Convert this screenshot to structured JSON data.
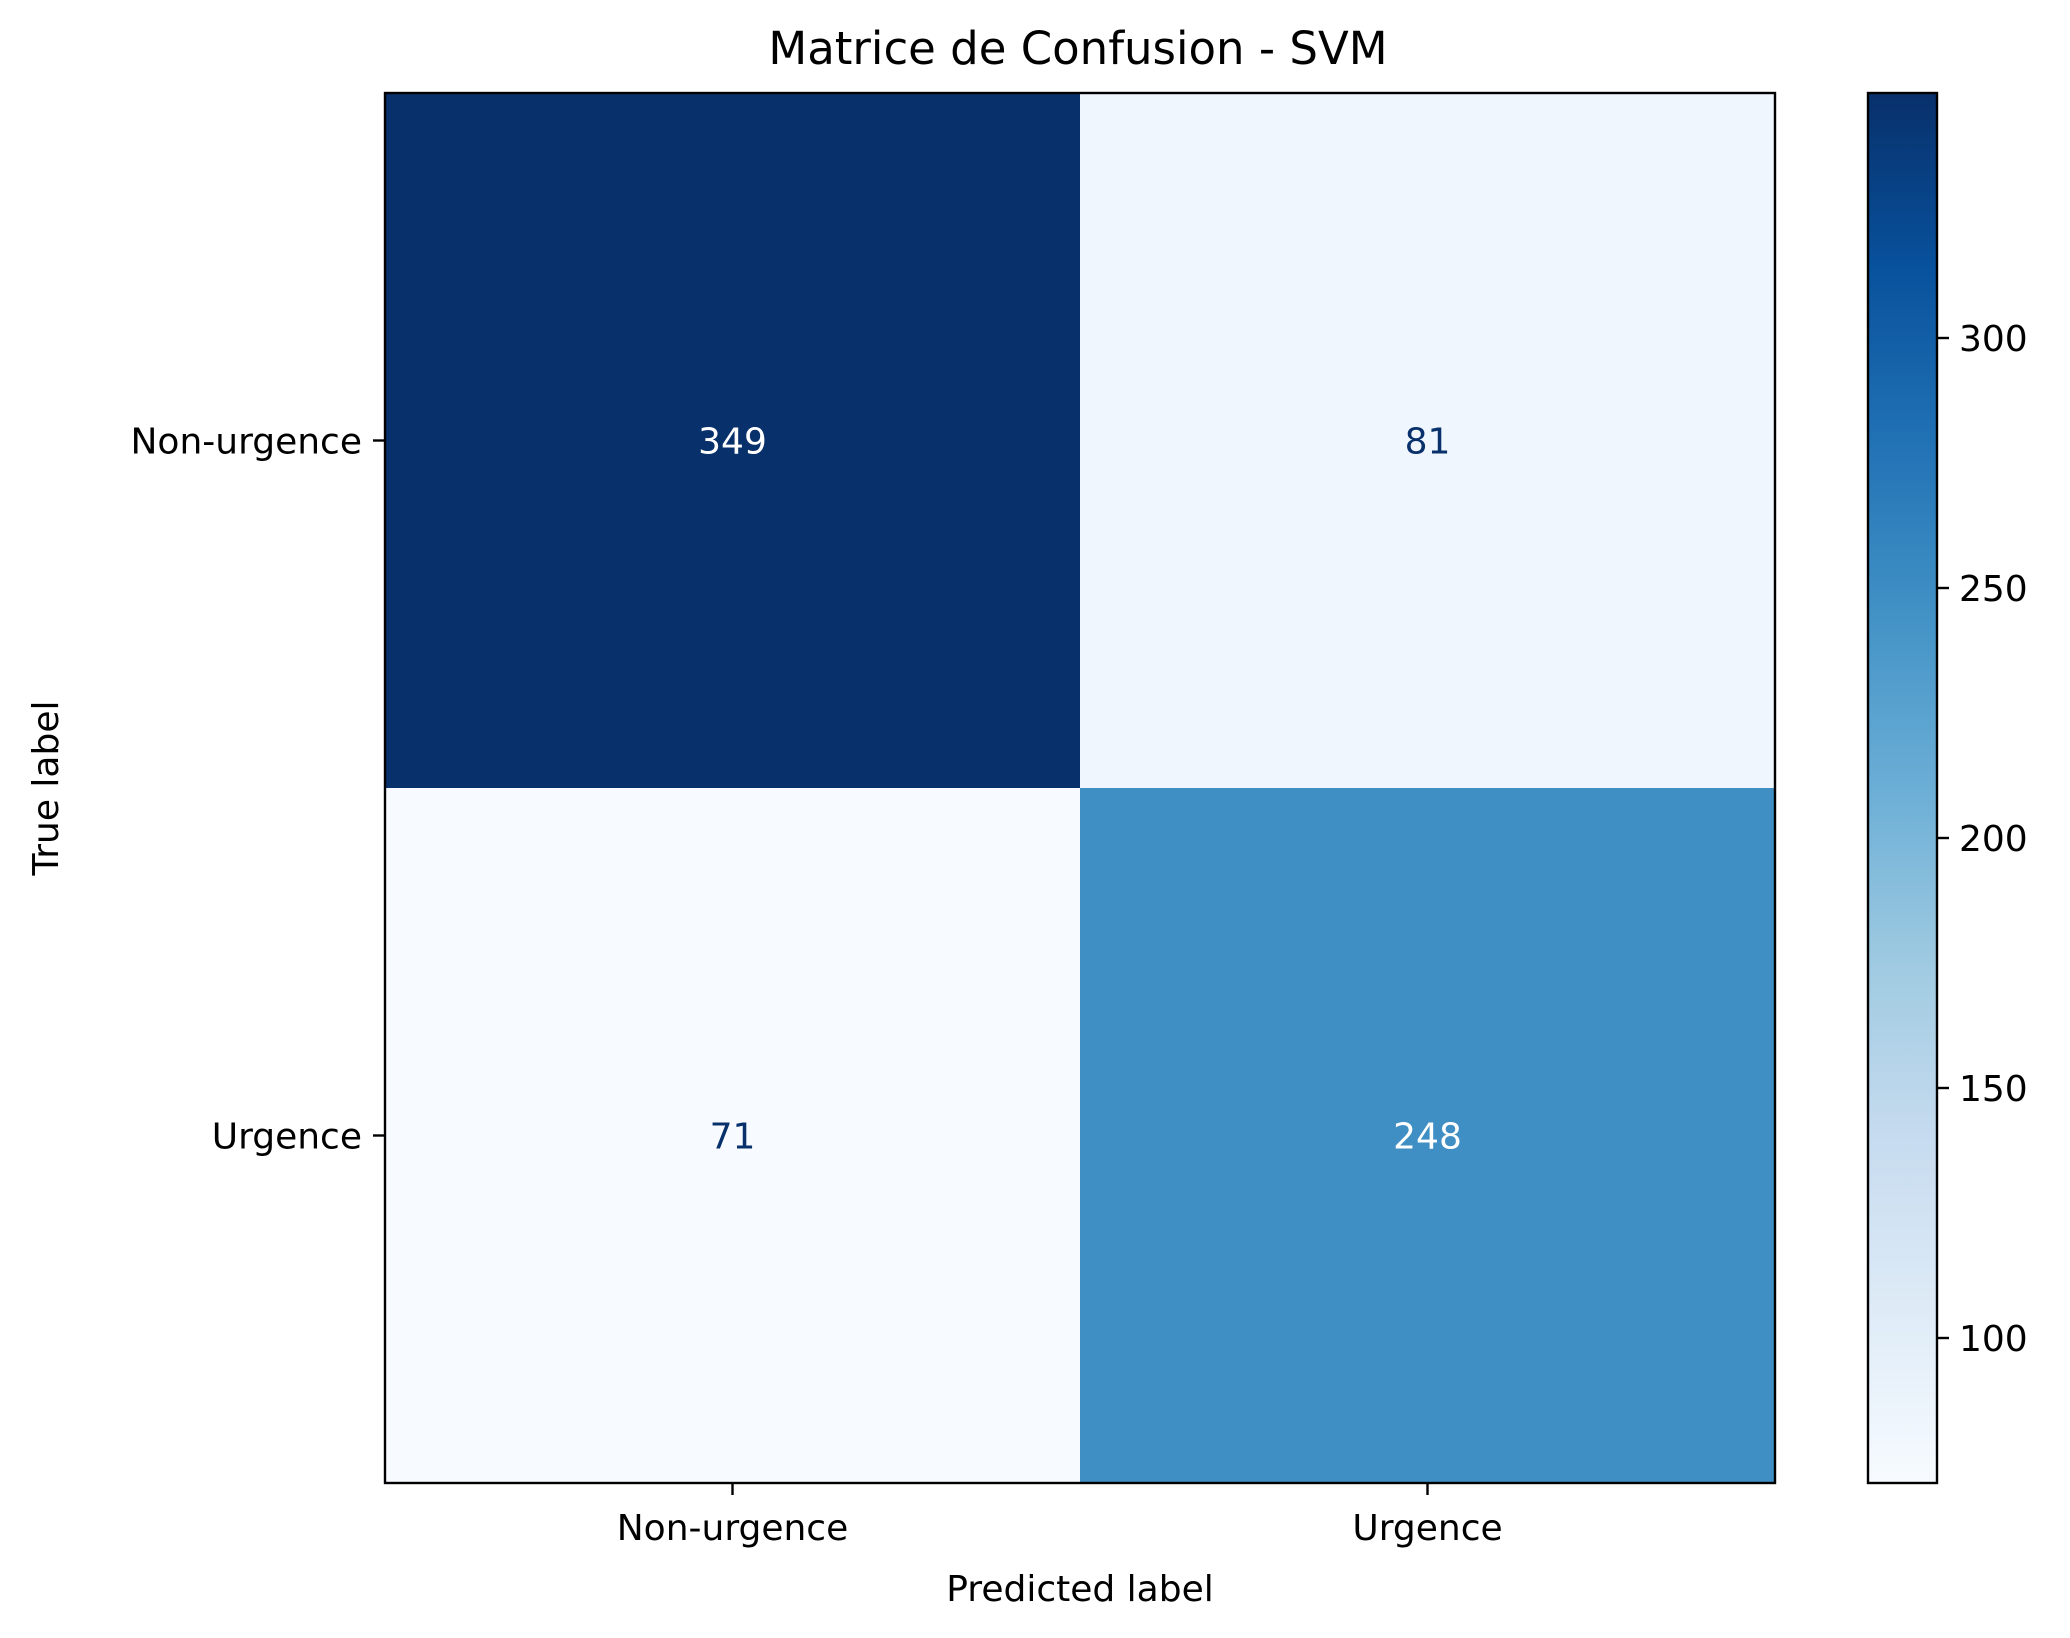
{
  "chart_data": {
    "type": "heatmap",
    "title": "Matrice de Confusion - SVM",
    "xlabel": "Predicted label",
    "ylabel": "True label",
    "x_categories": [
      "Non-urgence",
      "Urgence"
    ],
    "y_categories": [
      "Non-urgence",
      "Urgence"
    ],
    "values": [
      [
        349,
        81
      ],
      [
        71,
        248
      ]
    ],
    "colormap": "Blues",
    "colorbar": {
      "range": [
        71,
        349
      ],
      "ticks": [
        100,
        150,
        200,
        250,
        300
      ]
    },
    "grid": false,
    "colors": {
      "dark_text": "#08306b",
      "light_text": "#ffffff"
    }
  }
}
